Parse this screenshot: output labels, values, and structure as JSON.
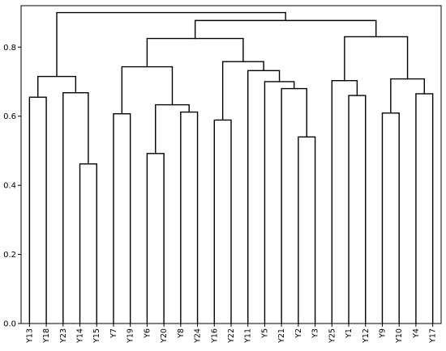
{
  "chart_data": {
    "type": "dendrogram",
    "title": "",
    "xlabel": "",
    "ylabel": "",
    "ylim": [
      0,
      0.92
    ],
    "yticks": [
      0.0,
      0.2,
      0.4,
      0.6,
      0.8
    ],
    "ytick_labels": [
      "0.0",
      "0.2",
      "0.4",
      "0.6",
      "0.8"
    ],
    "grid": false,
    "line_color": "#000000",
    "leaves": [
      "Y13",
      "Y18",
      "Y23",
      "Y14",
      "Y15",
      "Y7",
      "Y19",
      "Y6",
      "Y20",
      "Y8",
      "Y24",
      "Y16",
      "Y22",
      "Y11",
      "Y5",
      "Y21",
      "Y2",
      "Y3",
      "Y25",
      "Y1",
      "Y12",
      "Y9",
      "Y10",
      "Y4",
      "Y17"
    ],
    "merges": [
      {
        "left": "Y14",
        "right": "Y15",
        "height": 0.462
      },
      {
        "left": "Y6",
        "right": "Y20",
        "height": 0.492
      },
      {
        "left": "Y2",
        "right": "Y3",
        "height": 0.54
      },
      {
        "left": "Y16",
        "right": "Y22",
        "height": 0.589
      },
      {
        "left": "Y19",
        "right": "Y7",
        "height": 0.607
      },
      {
        "left": "Y9",
        "right": "Y10",
        "height": 0.609
      },
      {
        "left": "Y8",
        "right": "Y24",
        "height": 0.612
      },
      {
        "left": "Y13",
        "right": "Y18",
        "height": 0.655
      },
      {
        "left": "Y1",
        "right": "Y12",
        "height": 0.66
      },
      {
        "left": "Y4",
        "right": "Y17",
        "height": 0.665
      },
      {
        "left": "Y23",
        "right": "Y14+Y15",
        "height": 0.668
      },
      {
        "left": "Y21",
        "right": "Y2+Y3",
        "height": 0.68
      },
      {
        "left": "Y6+Y20",
        "right": "Y8+Y24",
        "height": 0.633
      },
      {
        "left": "Y5",
        "right": "Y21+Y2+Y3",
        "height": 0.7
      },
      {
        "left": "Y25",
        "right": "Y1+Y12",
        "height": 0.703
      },
      {
        "left": "Y9+Y10",
        "right": "Y4+Y17",
        "height": 0.708
      },
      {
        "left": "Y13+Y18",
        "right": "Y23+Y14+Y15",
        "height": 0.715
      },
      {
        "left": "Y11",
        "right": "Y5+Y21+Y2+Y3",
        "height": 0.732
      },
      {
        "left": "Y7+Y19",
        "right": "Y6+Y20+Y8+Y24",
        "height": 0.743
      },
      {
        "left": "Y16+Y22",
        "right": "Y11+Y5+Y21+Y2+Y3",
        "height": 0.758
      },
      {
        "left": "Y7+Y19+Y6+Y20+Y8+Y24",
        "right": "Y16+Y22+Y11+Y5+Y21+Y2+Y3",
        "height": 0.825
      },
      {
        "left": "Y25+Y1+Y12",
        "right": "Y9+Y10+Y4+Y17",
        "height": 0.83
      },
      {
        "left": "middle-group",
        "right": "right-group",
        "height": 0.877
      },
      {
        "left": "left-group",
        "right": "middle-right-group",
        "height": 0.9
      }
    ]
  }
}
